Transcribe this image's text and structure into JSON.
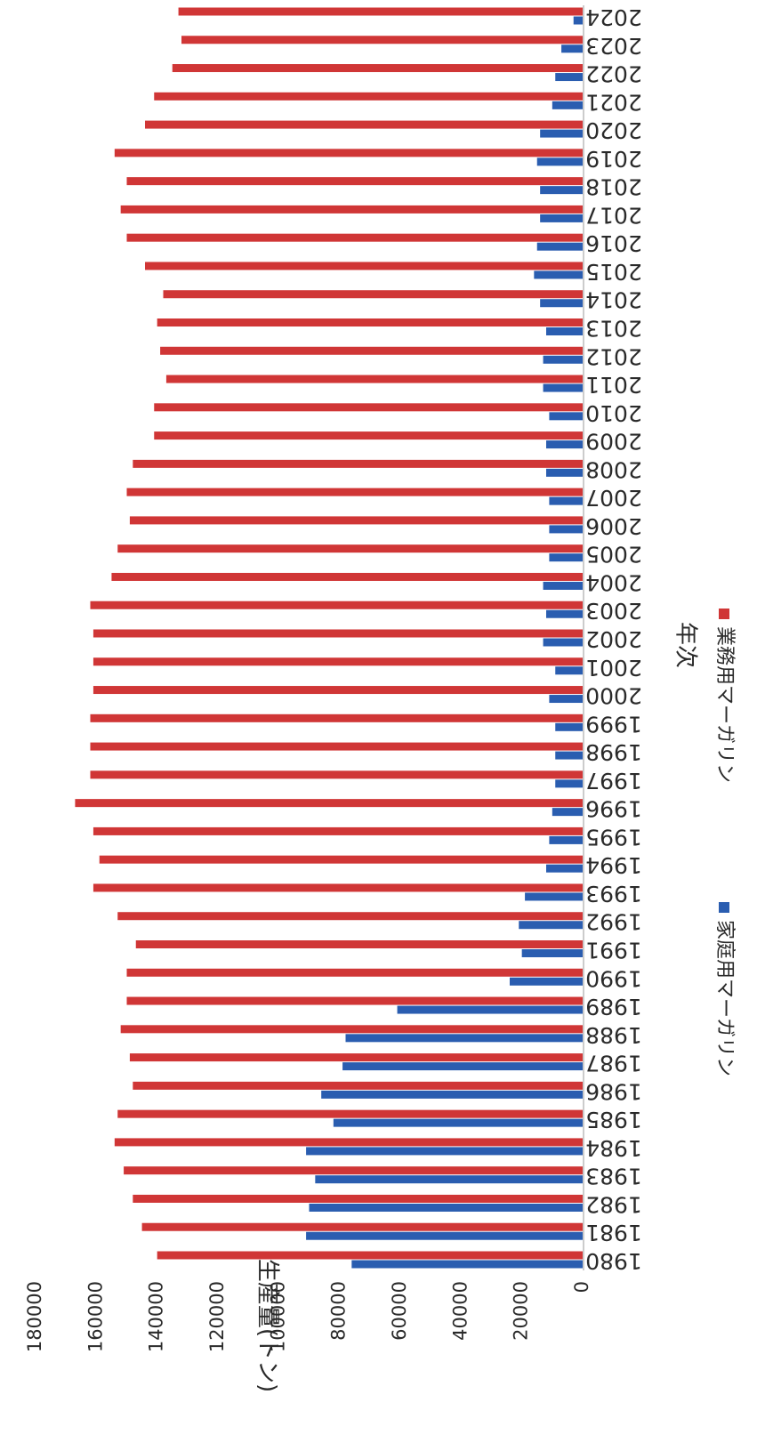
{
  "chart_data": {
    "type": "bar",
    "title": "",
    "xlabel": "年次",
    "ylabel": "生産量(トン)",
    "ylim": [
      0,
      180000
    ],
    "y_ticks": [
      0,
      20000,
      40000,
      60000,
      80000,
      100000,
      120000,
      140000,
      160000,
      180000
    ],
    "y_tick_labels": [
      "0",
      "20000",
      "40000",
      "60000",
      "80000",
      "100000",
      "120000",
      "140000",
      "160000",
      "180000"
    ],
    "grid": false,
    "legend_position": "bottom",
    "categories": [
      "1980",
      "1981",
      "1982",
      "1983",
      "1984",
      "1985",
      "1986",
      "1987",
      "1988",
      "1989",
      "1990",
      "1991",
      "1992",
      "1993",
      "1994",
      "1995",
      "1996",
      "1997",
      "1998",
      "1999",
      "2000",
      "2001",
      "2002",
      "2003",
      "2004",
      "2005",
      "2006",
      "2007",
      "2008",
      "2009",
      "2010",
      "2011",
      "2012",
      "2013",
      "2014",
      "2015",
      "2016",
      "2017",
      "2018",
      "2019",
      "2020",
      "2021",
      "2022",
      "2023",
      "2024"
    ],
    "series": [
      {
        "name": "家庭用マーガリン",
        "color": "#2a5db0",
        "values": [
          76000,
          91000,
          90000,
          88000,
          91000,
          82000,
          86000,
          79000,
          78000,
          61000,
          24000,
          20000,
          21000,
          19000,
          12000,
          11000,
          10000,
          9000,
          9000,
          9000,
          11000,
          9000,
          13000,
          12000,
          13000,
          11000,
          11000,
          11000,
          12000,
          12000,
          11000,
          13000,
          13000,
          12000,
          14000,
          16000,
          15000,
          14000,
          14000,
          15000,
          14000,
          10000,
          9000,
          7000,
          3000
        ]
      },
      {
        "name": "業務用マーガリン",
        "color": "#d03636",
        "values": [
          140000,
          145000,
          148000,
          151000,
          154000,
          153000,
          148000,
          149000,
          152000,
          150000,
          150000,
          147000,
          153000,
          161000,
          159000,
          161000,
          167000,
          162000,
          162000,
          162000,
          161000,
          161000,
          161000,
          162000,
          155000,
          153000,
          149000,
          150000,
          148000,
          141000,
          141000,
          137000,
          139000,
          140000,
          138000,
          144000,
          150000,
          152000,
          150000,
          154000,
          144000,
          141000,
          135000,
          132000,
          133000
        ]
      }
    ]
  }
}
